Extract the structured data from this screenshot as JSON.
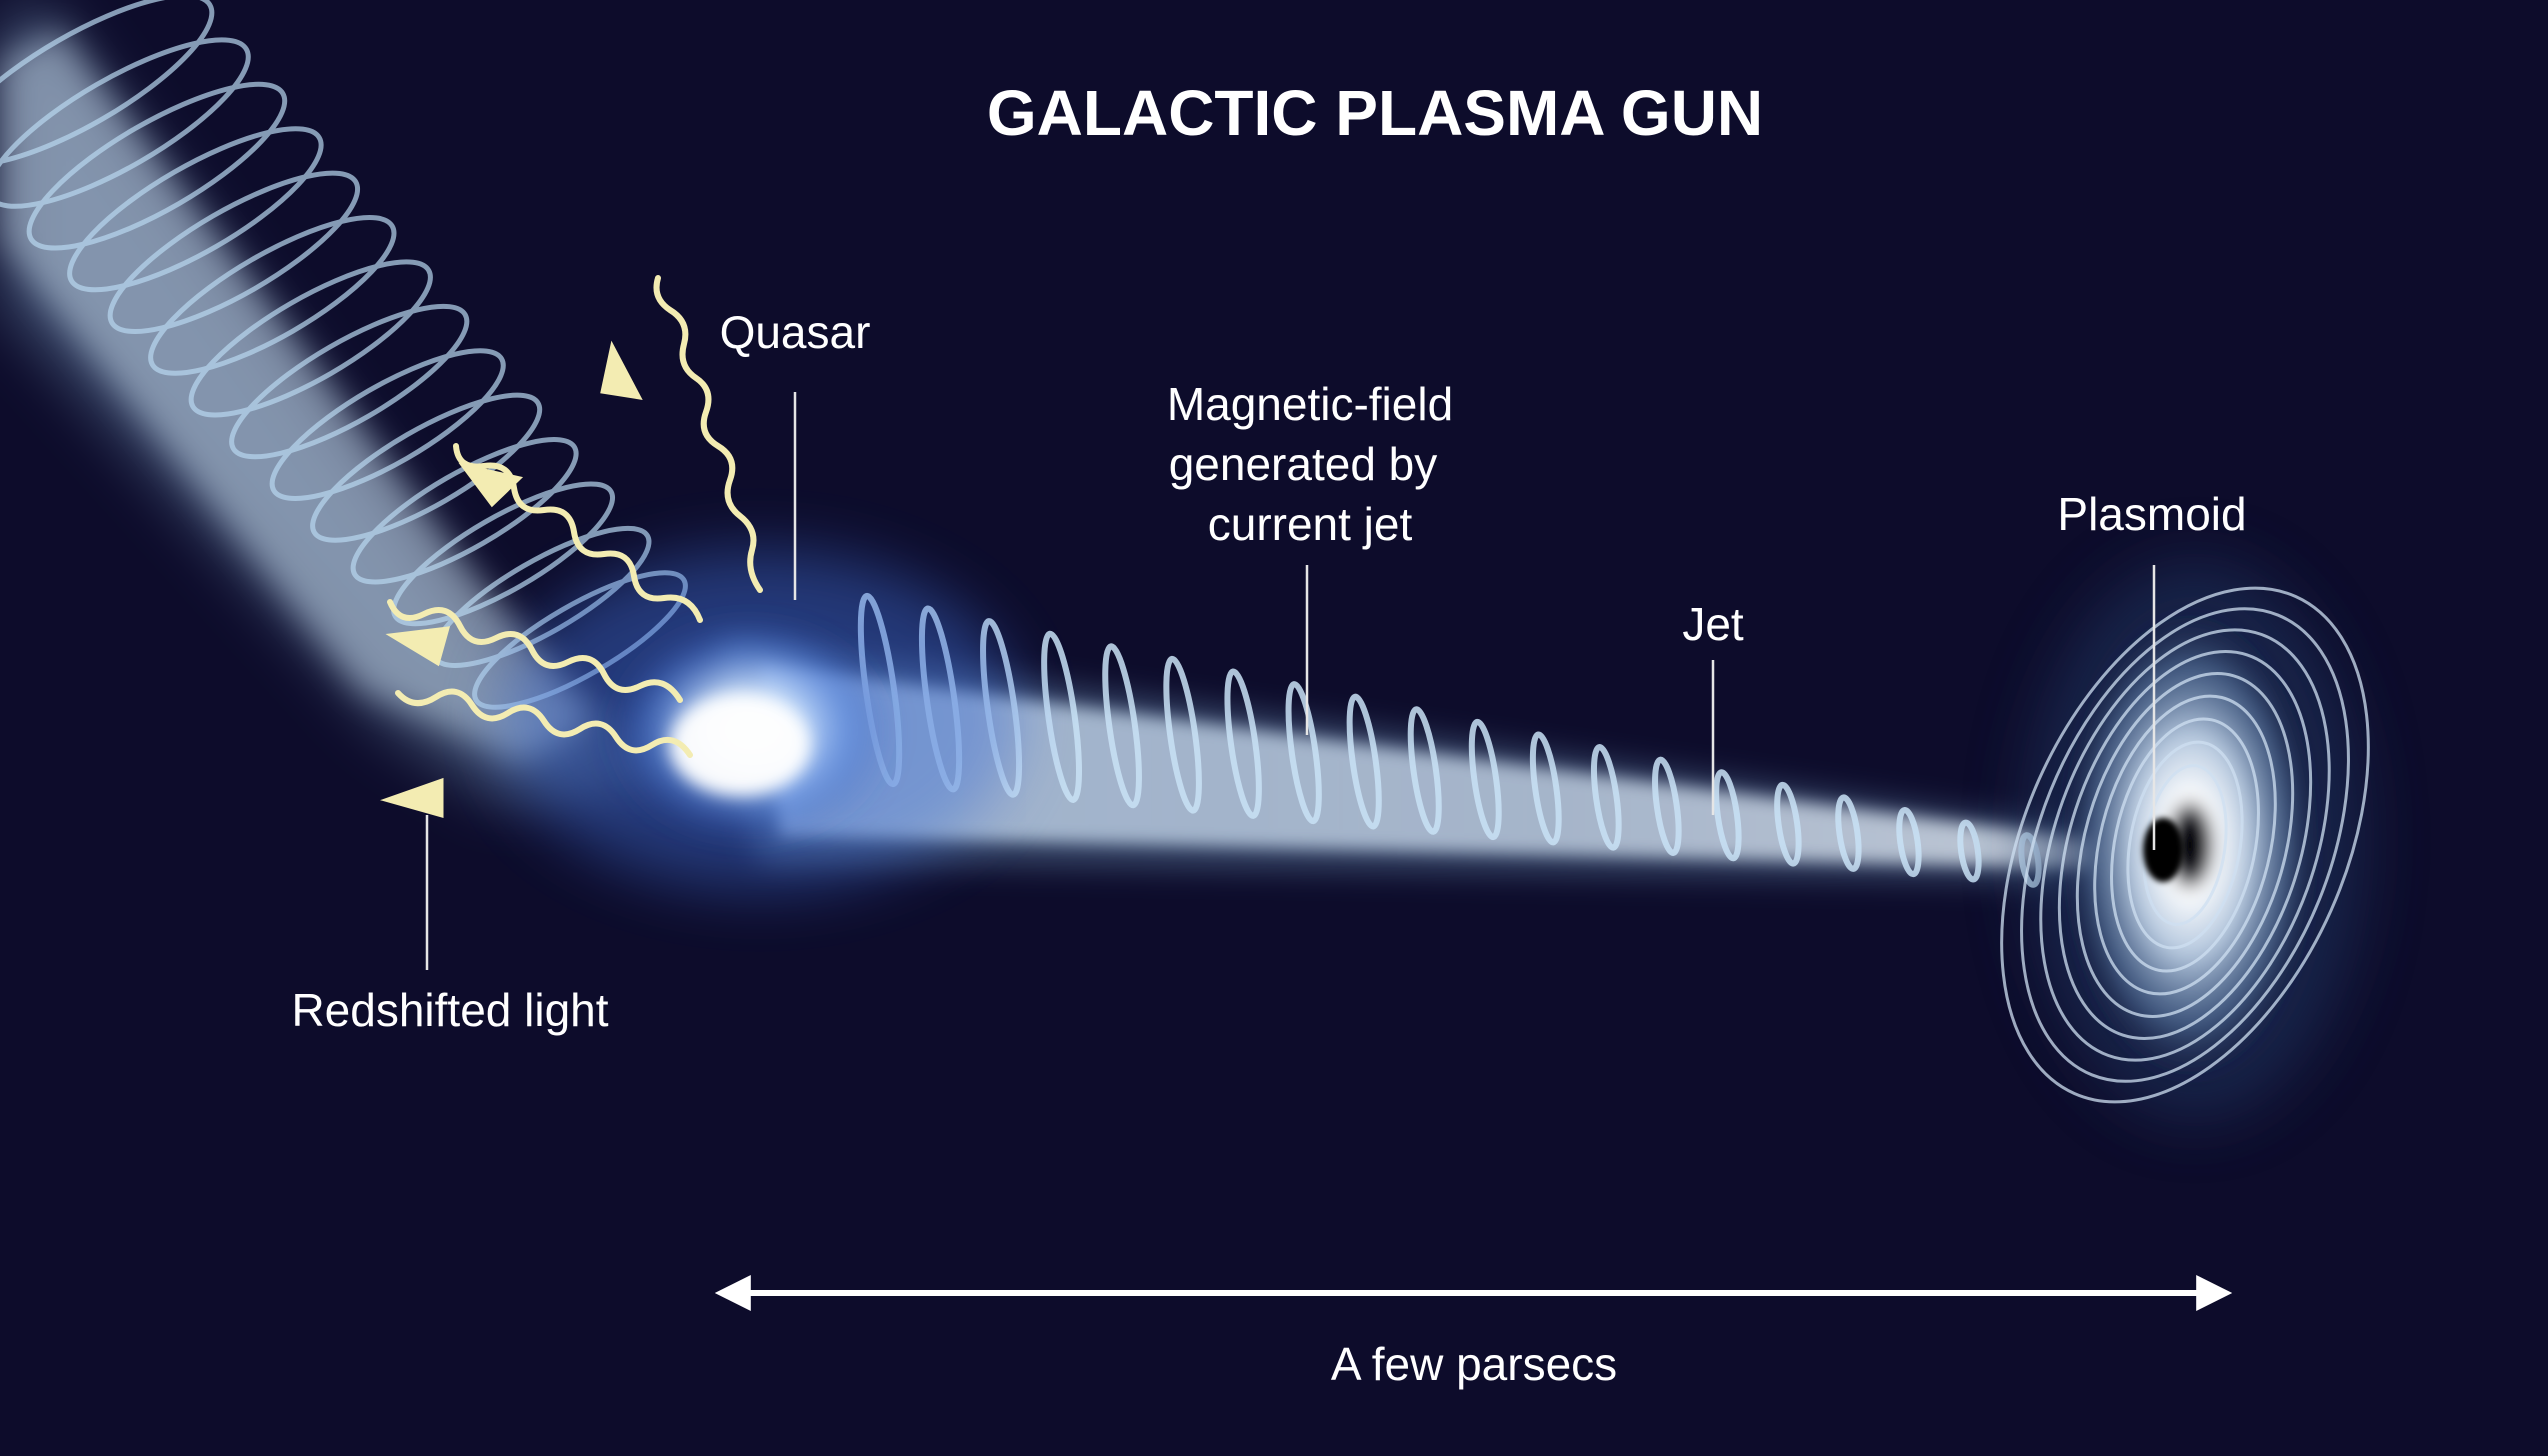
{
  "title": "GALACTIC PLASMA GUN",
  "labels": {
    "quasar": "Quasar",
    "magnetic_field": [
      "Magnetic-field",
      "generated by",
      "current jet"
    ],
    "jet": "Jet",
    "plasmoid": "Plasmoid",
    "redshifted_light": "Redshifted light"
  },
  "scale": {
    "label": "A few parsecs"
  },
  "colors": {
    "background": "#0d0c2b",
    "jet_core": "#e8f4ff",
    "jet_glow": "#9cc9ee",
    "quasar_glow": "#4f86e6",
    "wave": "#f3ecb2",
    "text": "#ffffff"
  }
}
